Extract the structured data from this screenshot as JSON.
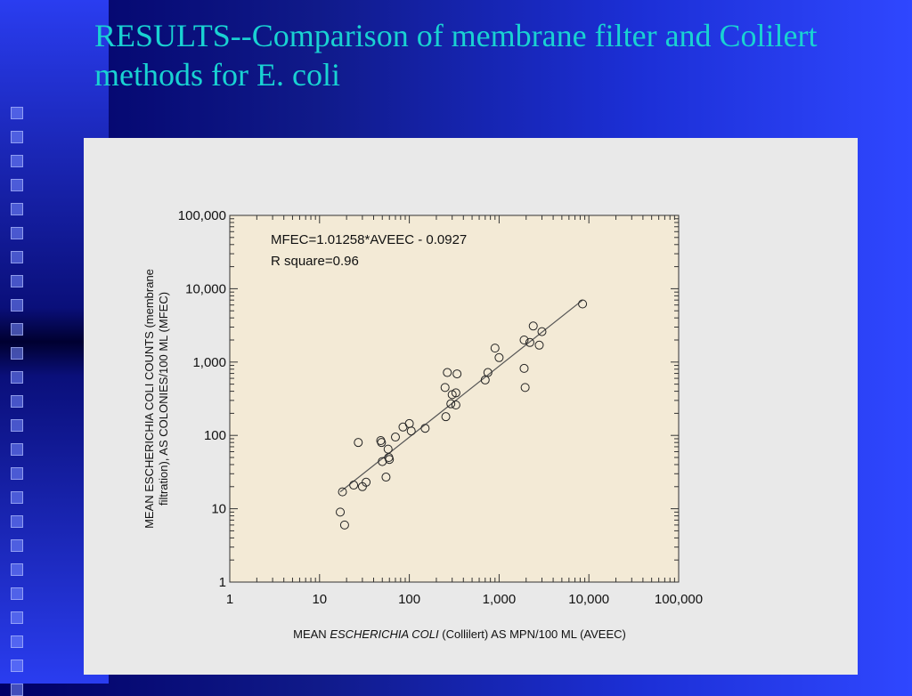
{
  "slide": {
    "title": "RESULTS--Comparison of membrane filter and Colilert methods for E. coli"
  },
  "colors": {
    "background_dark": "#000066",
    "background_bright": "#2f47ff",
    "title_color": "#19d2d2",
    "panel_bg": "#e9e9e9",
    "plot_bg": "#f3ead6"
  },
  "chart_data": {
    "type": "scatter",
    "log_x": true,
    "log_y": true,
    "xlim": [
      1,
      100000
    ],
    "ylim": [
      1,
      100000
    ],
    "x_ticks": [
      1,
      10,
      100,
      1000,
      10000,
      100000
    ],
    "x_tick_labels": [
      "1",
      "10",
      "100",
      "1,000",
      "10,000",
      "100,000"
    ],
    "y_ticks": [
      1,
      10,
      100,
      1000,
      10000,
      100000
    ],
    "y_tick_labels": [
      "1",
      "10",
      "100",
      "1,000",
      "10,000",
      "100,000"
    ],
    "xlabel_prefix": "MEAN ",
    "xlabel_italic": "ESCHERICHIA COLI",
    "xlabel_suffix": " (Collilert) AS MPN/100 ML (AVEEC)",
    "ylabel_line1": "MEAN ESCHERICHIA COLI COUNTS (membrane",
    "ylabel_line2": "filtration), AS COLONIES/100 ML (MFEC)",
    "annotations": [
      "MFEC=1.01258*AVEEC - 0.0927",
      "R square=0.96"
    ],
    "regression_line": {
      "x": [
        17,
        8500
      ],
      "y": [
        17,
        7000
      ]
    },
    "points": [
      {
        "x": 17,
        "y": 9
      },
      {
        "x": 18,
        "y": 17
      },
      {
        "x": 19,
        "y": 6
      },
      {
        "x": 24,
        "y": 21
      },
      {
        "x": 27,
        "y": 80
      },
      {
        "x": 30,
        "y": 20
      },
      {
        "x": 33,
        "y": 23
      },
      {
        "x": 48,
        "y": 85
      },
      {
        "x": 49,
        "y": 80
      },
      {
        "x": 50,
        "y": 44
      },
      {
        "x": 55,
        "y": 27
      },
      {
        "x": 58,
        "y": 65
      },
      {
        "x": 59,
        "y": 50
      },
      {
        "x": 60,
        "y": 47
      },
      {
        "x": 70,
        "y": 95
      },
      {
        "x": 85,
        "y": 130
      },
      {
        "x": 100,
        "y": 145
      },
      {
        "x": 105,
        "y": 115
      },
      {
        "x": 150,
        "y": 125
      },
      {
        "x": 250,
        "y": 450
      },
      {
        "x": 255,
        "y": 180
      },
      {
        "x": 265,
        "y": 720
      },
      {
        "x": 290,
        "y": 270
      },
      {
        "x": 300,
        "y": 360
      },
      {
        "x": 330,
        "y": 260
      },
      {
        "x": 330,
        "y": 380
      },
      {
        "x": 340,
        "y": 690
      },
      {
        "x": 700,
        "y": 570
      },
      {
        "x": 750,
        "y": 720
      },
      {
        "x": 900,
        "y": 1550
      },
      {
        "x": 1000,
        "y": 1150
      },
      {
        "x": 1900,
        "y": 2000
      },
      {
        "x": 1900,
        "y": 820
      },
      {
        "x": 1950,
        "y": 450
      },
      {
        "x": 2200,
        "y": 1850
      },
      {
        "x": 2400,
        "y": 3100
      },
      {
        "x": 2800,
        "y": 1700
      },
      {
        "x": 3000,
        "y": 2600
      },
      {
        "x": 8500,
        "y": 6200
      }
    ]
  }
}
